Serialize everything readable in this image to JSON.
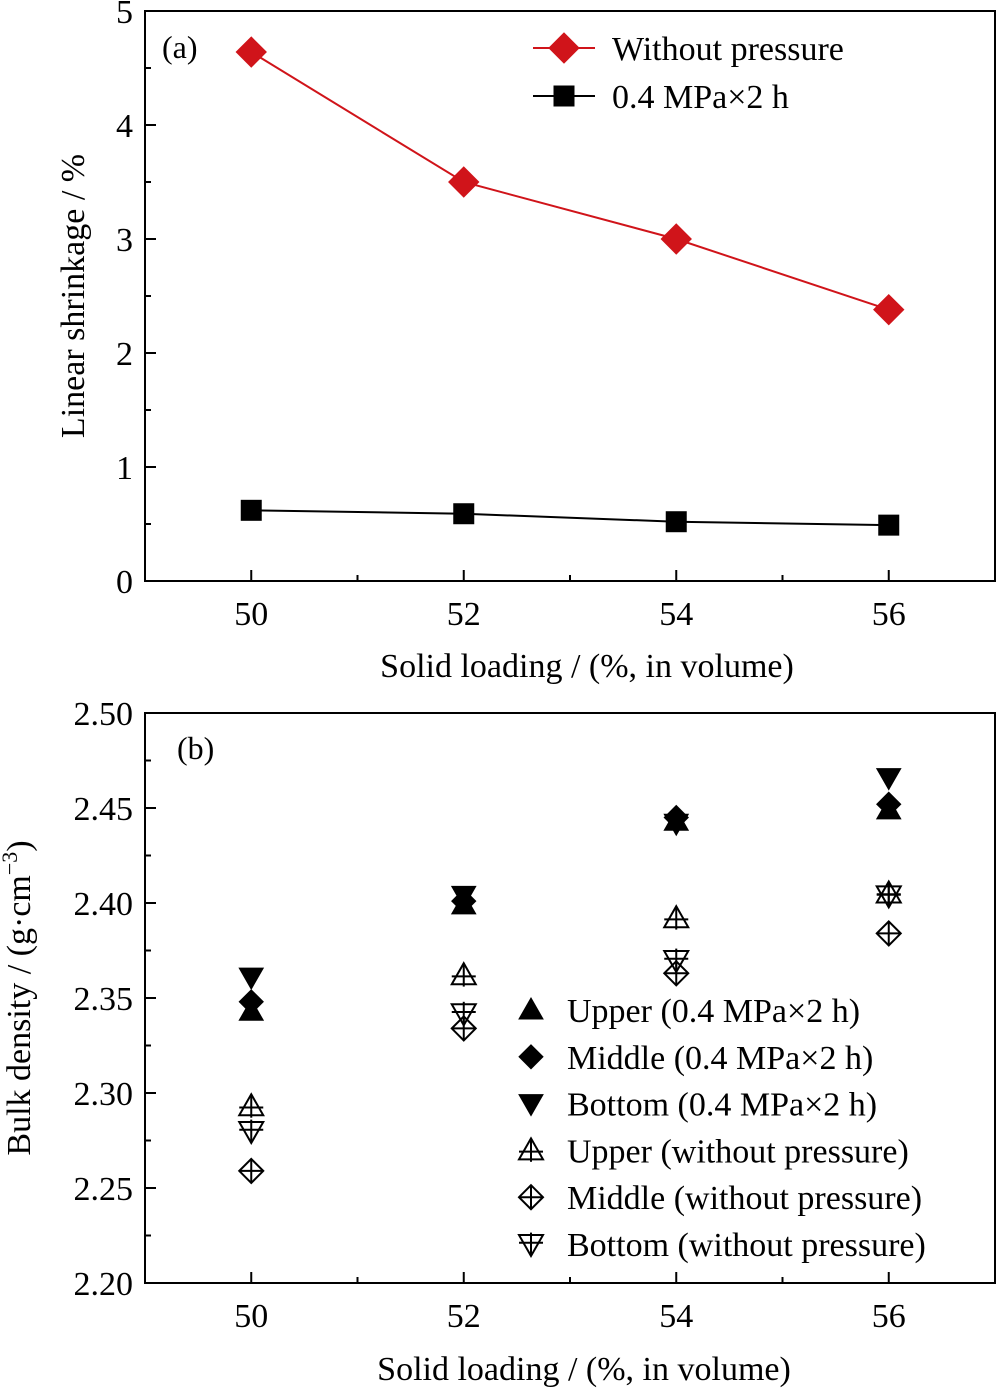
{
  "colors": {
    "without_pressure": "#d0141a",
    "with_pressure": "#000000"
  },
  "chart_data": [
    {
      "type": "line",
      "panel_label": "(a)",
      "xlabel": "Solid loading  / (%, in volume)",
      "ylabel": "Linear shrinkage / %",
      "xlim": [
        49,
        57
      ],
      "ylim": [
        0,
        5
      ],
      "xticks": [
        50,
        52,
        54,
        56
      ],
      "yticks": [
        0,
        1,
        2,
        3,
        4,
        5
      ],
      "grid": false,
      "legend_position": "top-right",
      "series": [
        {
          "name": "Without pressure",
          "marker": "diamond-filled",
          "color": "#d0141a",
          "x": [
            50,
            52,
            54,
            56
          ],
          "y": [
            4.64,
            3.5,
            3.0,
            2.38
          ]
        },
        {
          "name": "0.4 MPa×2 h",
          "marker": "square-filled",
          "color": "#000000",
          "x": [
            50,
            52,
            54,
            56
          ],
          "y": [
            0.62,
            0.59,
            0.52,
            0.49
          ]
        }
      ]
    },
    {
      "type": "scatter",
      "panel_label": "(b)",
      "xlabel": "Solid loading  / (%, in volume)",
      "ylabel": "Bulk density / (g·cm",
      "ylabel_superscript": "−3",
      "ylabel_close": ")",
      "xlim": [
        49,
        57
      ],
      "ylim": [
        2.2,
        2.5
      ],
      "xticks": [
        50,
        52,
        54,
        56
      ],
      "yticks": [
        "2.20",
        "2.25",
        "2.30",
        "2.35",
        "2.40",
        "2.45",
        "2.50"
      ],
      "grid": false,
      "legend_position": "bottom-right",
      "series": [
        {
          "name": "Upper (0.4 MPa×2 h)",
          "marker": "triangle-up-filled",
          "x": [
            50,
            52,
            54,
            56
          ],
          "y": [
            2.343,
            2.399,
            2.443,
            2.449
          ]
        },
        {
          "name": "Middle (0.4 MPa×2 h)",
          "marker": "diamond-filled",
          "x": [
            50,
            52,
            54,
            56
          ],
          "y": [
            2.348,
            2.401,
            2.445,
            2.452
          ]
        },
        {
          "name": "Bottom (0.4 MPa×2 h)",
          "marker": "triangle-down-filled",
          "x": [
            50,
            52,
            54,
            56
          ],
          "y": [
            2.361,
            2.404,
            2.442,
            2.466
          ]
        },
        {
          "name": "Upper (without pressure)",
          "marker": "triangle-up-open",
          "x": [
            50,
            52,
            54,
            56
          ],
          "y": [
            2.293,
            2.362,
            2.392,
            2.405
          ]
        },
        {
          "name": "Middle (without pressure)",
          "marker": "diamond-open",
          "x": [
            50,
            52,
            54,
            56
          ],
          "y": [
            2.259,
            2.334,
            2.363,
            2.384
          ]
        },
        {
          "name": "Bottom (without pressure)",
          "marker": "triangle-down-open",
          "x": [
            50,
            52,
            54,
            56
          ],
          "y": [
            2.28,
            2.342,
            2.37,
            2.404
          ]
        }
      ]
    }
  ]
}
